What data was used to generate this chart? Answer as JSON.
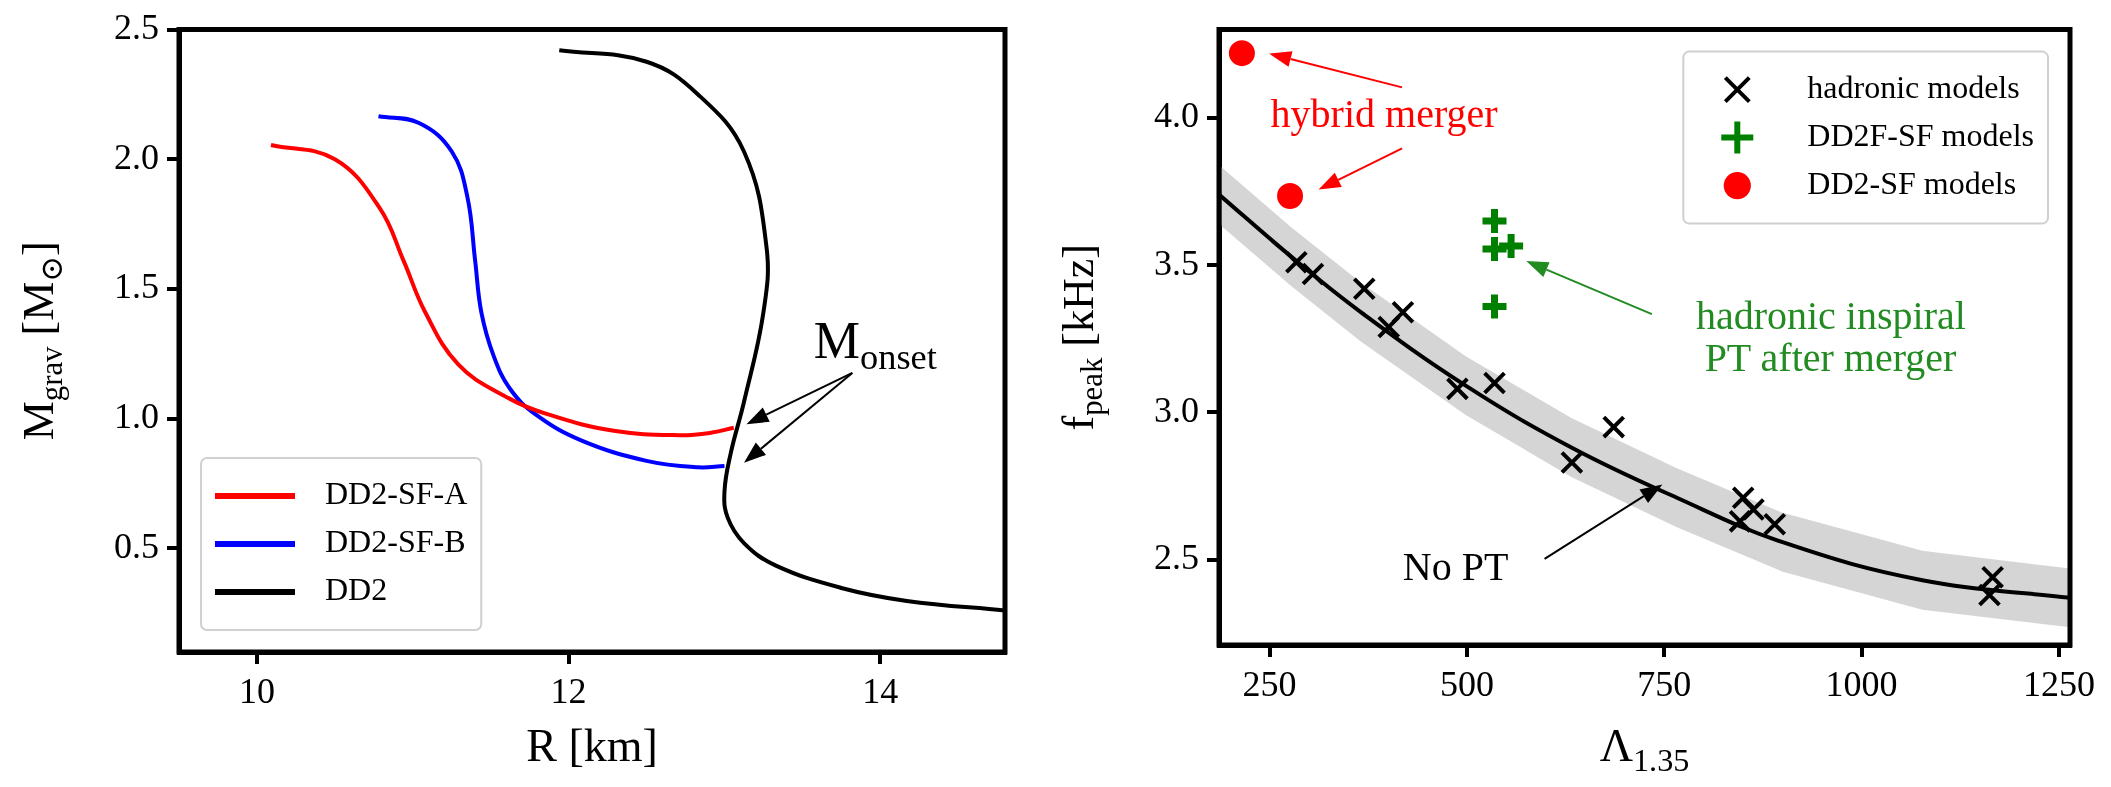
{
  "chart_data": [
    {
      "type": "line",
      "xlabel": "R [km]",
      "ylabel": "M$_{grav}$ [M$_{⊙}$]",
      "xlim": [
        9.5,
        14.8
      ],
      "xticks": [
        10,
        12,
        14
      ],
      "ylim": [
        0.1,
        2.5
      ],
      "yticks": [
        {
          "value": 0.5,
          "label": "0.5"
        },
        {
          "value": 1,
          "label": "1.0"
        },
        {
          "value": 1.5,
          "label": "1.5"
        },
        {
          "value": 2,
          "label": "2.0"
        },
        {
          "value": 2.5,
          "label": "2.5"
        }
      ],
      "legend": "bottom left",
      "annotations": [
        "M$_{onset}$"
      ],
      "series": [
        {
          "name": "DD2-SF-A",
          "color": "#ff0000",
          "x": [
            10.09,
            10.5,
            10.79,
            10.94,
            11.08,
            11.29,
            11.58,
            11.875,
            12.29,
            12.71,
            12.92,
            13.06
          ],
          "values": [
            2.055,
            2.0,
            1.81,
            1.61,
            1.41,
            1.21,
            1.09,
            1.015,
            0.953,
            0.936,
            0.946,
            0.965
          ]
        },
        {
          "name": "DD2-SF-B",
          "color": "#0000ff",
          "x": [
            10.78,
            11.04,
            11.25,
            11.35,
            11.4,
            11.44,
            11.52,
            11.625,
            11.79,
            12.08,
            12.5,
            12.83,
            13.0
          ],
          "values": [
            2.166,
            2.14,
            2.03,
            1.856,
            1.61,
            1.41,
            1.24,
            1.114,
            1.015,
            0.916,
            0.837,
            0.812,
            0.817
          ]
        },
        {
          "name": "DD2",
          "color": "#000000",
          "x": [
            11.94,
            12.5,
            12.83,
            13.125,
            13.27,
            13.25,
            13.125,
            13.04,
            13.0,
            13.02,
            13.125,
            13.33,
            13.75,
            14.17,
            14.8
          ],
          "values": [
            2.42,
            2.376,
            2.25,
            2.03,
            1.66,
            1.41,
            1.064,
            0.866,
            0.718,
            0.619,
            0.52,
            0.433,
            0.347,
            0.297,
            0.26
          ]
        }
      ]
    },
    {
      "type": "scatter",
      "xlabel": "Λ$_{1.35}$",
      "ylabel": "f$_{peak}$ [kHz]",
      "xlim": [
        186,
        1264
      ],
      "xticks": [
        250,
        500,
        750,
        1000,
        1250
      ],
      "ylim": [
        2.21,
        4.3
      ],
      "yticks": [
        {
          "value": 2.5,
          "label": "2.5"
        },
        {
          "value": 3,
          "label": "3.0"
        },
        {
          "value": 3.5,
          "label": "3.5"
        },
        {
          "value": 4,
          "label": "4.0"
        }
      ],
      "legend": "top right",
      "annotations": [
        "hybrid merger",
        "hadronic inspiral\nPT after merger",
        "No PT"
      ],
      "series": [
        {
          "type": "line",
          "color": "#000000",
          "x": [
            186,
            277,
            366,
            499,
            633,
            766,
            899,
            1077,
            1264
          ],
          "values": [
            3.74,
            3.53,
            3.34,
            3.09,
            2.88,
            2.71,
            2.56,
            2.43,
            2.37
          ],
          "lower": [
            3.64,
            3.43,
            3.24,
            2.99,
            2.78,
            2.61,
            2.46,
            2.33,
            2.27
          ],
          "upper": [
            3.84,
            3.63,
            3.44,
            3.19,
            2.98,
            2.81,
            2.66,
            2.53,
            2.47
          ]
        },
        {
          "name": "hadronic models",
          "color": "#000000",
          "marker": "x",
          "x": [
            284,
            305,
            370,
            401,
            419,
            488,
            535,
            633,
            686,
            850,
            846,
            863,
            890,
            1166,
            1162
          ],
          "values": [
            3.51,
            3.47,
            3.42,
            3.29,
            3.34,
            3.08,
            3.1,
            2.83,
            2.95,
            2.71,
            2.63,
            2.67,
            2.62,
            2.44,
            2.38
          ]
        },
        {
          "name": "DD2F-SF models",
          "color": "#008000",
          "marker": "cross",
          "x": [
            535,
            535,
            556,
            535
          ],
          "values": [
            3.65,
            3.555,
            3.565,
            3.36
          ]
        },
        {
          "name": "DD2-SF models",
          "color": "#ff0000",
          "marker": "circle",
          "x": [
            215,
            276
          ],
          "values": [
            4.22,
            3.735
          ]
        }
      ]
    }
  ]
}
